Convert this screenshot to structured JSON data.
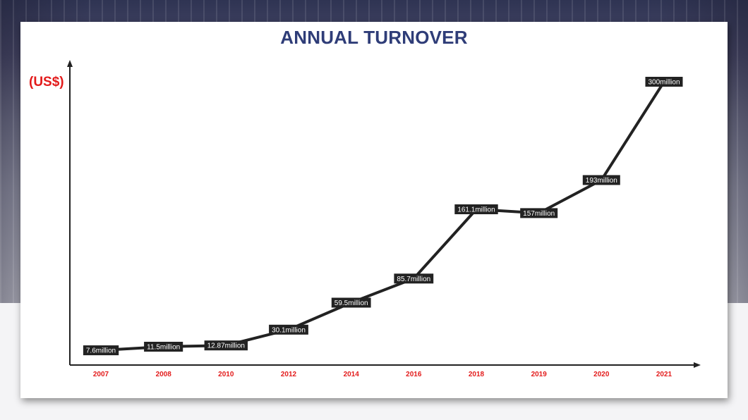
{
  "chart_data": {
    "type": "line",
    "title": "ANNUAL TURNOVER",
    "ylabel": "(US$)",
    "xlabel": "",
    "categories": [
      "2007",
      "2008",
      "2010",
      "2012",
      "2014",
      "2016",
      "2018",
      "2019",
      "2020",
      "2021"
    ],
    "series": [
      {
        "values": [
          7.6,
          11.5,
          12.87,
          30.1,
          59.5,
          85.7,
          161.1,
          157,
          193,
          300
        ],
        "labels": [
          "7.6million",
          "11.5million",
          "12.87million",
          "30.1million",
          "59.5million",
          "85.7million",
          "161.1million",
          "157million",
          "193million",
          "300million"
        ]
      }
    ],
    "ylim": [
      0,
      300
    ],
    "grid": false,
    "legend": "none",
    "colors": {
      "line": "#222222",
      "label_bg": "#222222",
      "tick": "#e31b1b",
      "title": "#2f3d78"
    }
  }
}
